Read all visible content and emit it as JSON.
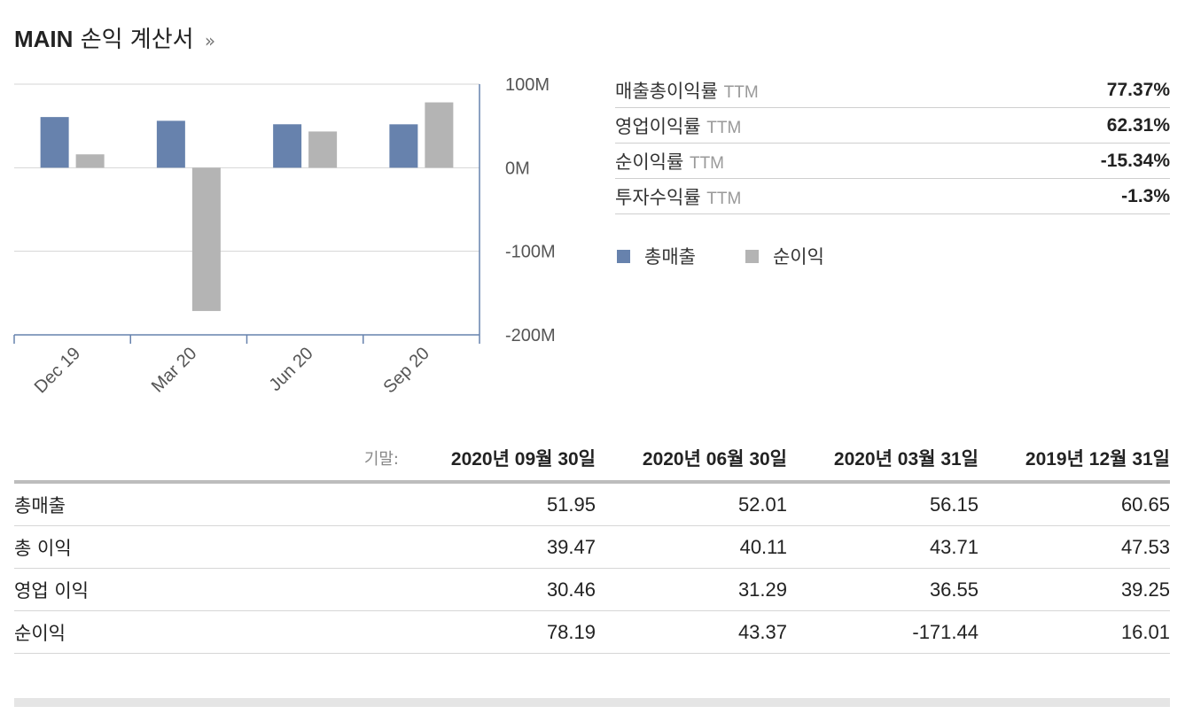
{
  "header": {
    "symbol": "MAIN",
    "title": "손익 계산서",
    "more": "»"
  },
  "chart_data": {
    "type": "bar",
    "categories": [
      "Dec 19",
      "Mar 20",
      "Jun 20",
      "Sep 20"
    ],
    "series": [
      {
        "name": "총매출",
        "color": "#6782ad",
        "values": [
          60.65,
          56.15,
          52.01,
          51.95
        ]
      },
      {
        "name": "순이익",
        "color": "#b4b4b4",
        "values": [
          16.01,
          -171.44,
          43.37,
          78.19
        ]
      }
    ],
    "y_unit": "M",
    "ylim": [
      -200,
      100
    ],
    "yticks": [
      100,
      0,
      -100,
      -200
    ],
    "ytick_labels": [
      "100M",
      "0M",
      "-100M",
      "-200M"
    ],
    "grid": true,
    "legend": "right"
  },
  "ratios": [
    {
      "name": "매출총이익률",
      "suffix": "TTM",
      "value": "77.37%"
    },
    {
      "name": "영업이익률",
      "suffix": "TTM",
      "value": "62.31%"
    },
    {
      "name": "순이익률",
      "suffix": "TTM",
      "value": "-15.34%"
    },
    {
      "name": "투자수익률",
      "suffix": "TTM",
      "value": "-1.3%"
    }
  ],
  "legend": {
    "revenue": "총매출",
    "net_income": "순이익"
  },
  "table": {
    "period_label": "기말:",
    "columns": [
      {
        "y": "2020",
        "yk": "년",
        "m": "09",
        "mk": "월",
        "d": "30",
        "dk": "일"
      },
      {
        "y": "2020",
        "yk": "년",
        "m": "06",
        "mk": "월",
        "d": "30",
        "dk": "일"
      },
      {
        "y": "2020",
        "yk": "년",
        "m": "03",
        "mk": "월",
        "d": "31",
        "dk": "일"
      },
      {
        "y": "2019",
        "yk": "년",
        "m": "12",
        "mk": "월",
        "d": "31",
        "dk": "일"
      }
    ],
    "rows": [
      {
        "name": "총매출",
        "values": [
          "51.95",
          "52.01",
          "56.15",
          "60.65"
        ]
      },
      {
        "name": "총 이익",
        "values": [
          "39.47",
          "40.11",
          "43.71",
          "47.53"
        ]
      },
      {
        "name": "영업 이익",
        "values": [
          "30.46",
          "31.29",
          "36.55",
          "39.25"
        ]
      },
      {
        "name": "순이익",
        "values": [
          "78.19",
          "43.37",
          "-171.44",
          "16.01"
        ]
      }
    ]
  }
}
